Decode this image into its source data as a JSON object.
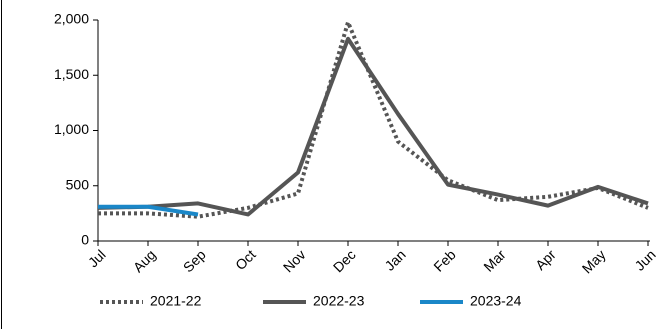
{
  "chart_data": {
    "type": "line",
    "categories": [
      "Jul",
      "Aug",
      "Sep",
      "Oct",
      "Nov",
      "Dec",
      "Jan",
      "Feb",
      "Mar",
      "Apr",
      "May",
      "Jun"
    ],
    "series": [
      {
        "name": "2021-22",
        "color": "#555555",
        "dash": true,
        "values": [
          250,
          250,
          220,
          300,
          430,
          1980,
          900,
          550,
          370,
          400,
          480,
          300
        ]
      },
      {
        "name": "2022-23",
        "color": "#555555",
        "dash": false,
        "values": [
          300,
          310,
          340,
          240,
          620,
          1830,
          1150,
          510,
          420,
          320,
          490,
          340
        ]
      },
      {
        "name": "2023-24",
        "color": "#1a87c8",
        "dash": false,
        "values": [
          310,
          310,
          240,
          null,
          null,
          null,
          null,
          null,
          null,
          null,
          null,
          null
        ]
      }
    ],
    "ylim": [
      0,
      2000
    ],
    "yticks": [
      0,
      {
        "value": 500,
        "label": "500"
      },
      {
        "value": 1000,
        "label": "1,000"
      },
      {
        "value": 1500,
        "label": "1,500"
      },
      {
        "value": 2000,
        "label": "2,000"
      }
    ],
    "legend": "bottom"
  }
}
